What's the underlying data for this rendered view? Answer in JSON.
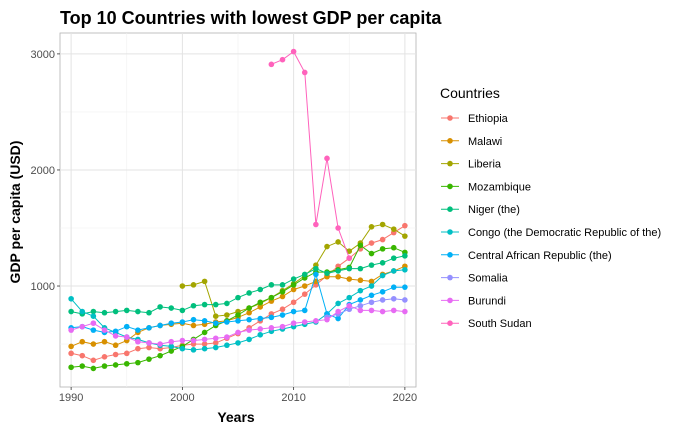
{
  "chart_data": {
    "type": "line",
    "title": "Top 10 Countries with lowest GDP per capita",
    "xlabel": "Years",
    "ylabel": "GDP per capita (USD)",
    "xlim": [
      1989,
      2021
    ],
    "ylim": [
      130,
      3180
    ],
    "xticks": [
      1990,
      2000,
      2010,
      2020
    ],
    "yticks": [
      1000,
      2000,
      3000
    ],
    "grid": true,
    "legend_title": "Countries",
    "legend_position": "right",
    "series": [
      {
        "name": "Ethiopia",
        "color": "#F8766D",
        "x": [
          1990,
          1991,
          1992,
          1993,
          1994,
          1995,
          1996,
          1997,
          1998,
          1999,
          2000,
          2001,
          2002,
          2003,
          2004,
          2005,
          2006,
          2007,
          2008,
          2009,
          2010,
          2011,
          2012,
          2013,
          2014,
          2015,
          2016,
          2017,
          2018,
          2019,
          2020
        ],
        "y": [
          420,
          400,
          360,
          390,
          410,
          420,
          460,
          470,
          460,
          470,
          490,
          500,
          500,
          510,
          550,
          590,
          640,
          700,
          760,
          800,
          860,
          930,
          1010,
          1090,
          1170,
          1240,
          1320,
          1370,
          1400,
          1460,
          1520
        ]
      },
      {
        "name": "Malawi",
        "color": "#D89000",
        "x": [
          1990,
          1991,
          1992,
          1993,
          1994,
          1995,
          1996,
          1997,
          1998,
          1999,
          2000,
          2001,
          2002,
          2003,
          2004,
          2005,
          2006,
          2007,
          2008,
          2009,
          2010,
          2011,
          2012,
          2013,
          2014,
          2015,
          2016,
          2017,
          2018,
          2019,
          2020
        ],
        "y": [
          480,
          520,
          500,
          520,
          490,
          530,
          600,
          640,
          660,
          670,
          680,
          660,
          670,
          690,
          700,
          730,
          770,
          820,
          870,
          910,
          970,
          1000,
          1040,
          1080,
          1080,
          1060,
          1050,
          1040,
          1100,
          1130,
          1170
        ]
      },
      {
        "name": "Liberia",
        "color": "#A3A500",
        "x": [
          2000,
          2001,
          2002,
          2003,
          2004,
          2005,
          2006,
          2007,
          2008,
          2009,
          2010,
          2011,
          2012,
          2013,
          2014,
          2015,
          2016,
          2017,
          2018,
          2019,
          2020
        ],
        "y": [
          1000,
          1010,
          1040,
          740,
          750,
          780,
          810,
          850,
          900,
          960,
          1020,
          1090,
          1180,
          1340,
          1380,
          1300,
          1370,
          1510,
          1530,
          1490,
          1430
        ]
      },
      {
        "name": "Mozambique",
        "color": "#39B600",
        "x": [
          1990,
          1991,
          1992,
          1993,
          1994,
          1995,
          1996,
          1997,
          1998,
          1999,
          2000,
          2001,
          2002,
          2003,
          2004,
          2005,
          2006,
          2007,
          2008,
          2009,
          2010,
          2011,
          2012,
          2013,
          2014,
          2015,
          2016,
          2017,
          2018,
          2019,
          2020
        ],
        "y": [
          300,
          310,
          290,
          310,
          320,
          330,
          340,
          370,
          400,
          440,
          480,
          540,
          600,
          660,
          700,
          750,
          810,
          860,
          900,
          950,
          1010,
          1070,
          1120,
          1120,
          1140,
          1160,
          1350,
          1280,
          1320,
          1330,
          1290
        ]
      },
      {
        "name": "Niger (the)",
        "color": "#00BF7D",
        "x": [
          1990,
          1991,
          1992,
          1993,
          1994,
          1995,
          1996,
          1997,
          1998,
          1999,
          2000,
          2001,
          2002,
          2003,
          2004,
          2005,
          2006,
          2007,
          2008,
          2009,
          2010,
          2011,
          2012,
          2013,
          2014,
          2015,
          2016,
          2017,
          2018,
          2019,
          2020
        ],
        "y": [
          780,
          760,
          780,
          770,
          780,
          790,
          780,
          770,
          820,
          810,
          790,
          830,
          840,
          840,
          850,
          900,
          940,
          970,
          1010,
          1010,
          1060,
          1100,
          1150,
          1110,
          1130,
          1150,
          1150,
          1180,
          1200,
          1240,
          1260
        ]
      },
      {
        "name": "Congo (the Democratic Republic of the)",
        "color": "#00BFC4",
        "x": [
          1990,
          1991,
          1992,
          1993,
          1994,
          1995,
          1996,
          1997,
          1998,
          1999,
          2000,
          2001,
          2002,
          2003,
          2004,
          2005,
          2006,
          2007,
          2008,
          2009,
          2010,
          2011,
          2012,
          2013,
          2014,
          2015,
          2016,
          2017,
          2018,
          2019,
          2020
        ],
        "y": [
          890,
          780,
          740,
          640,
          600,
          560,
          540,
          510,
          490,
          480,
          460,
          450,
          460,
          470,
          490,
          510,
          540,
          580,
          610,
          630,
          650,
          670,
          690,
          760,
          850,
          900,
          960,
          1000,
          1090,
          1130,
          1140
        ]
      },
      {
        "name": "Central African Republic (the)",
        "color": "#00B0F6",
        "x": [
          1990,
          1991,
          1992,
          1993,
          1994,
          1995,
          1996,
          1997,
          1998,
          1999,
          2000,
          2001,
          2002,
          2003,
          2004,
          2005,
          2006,
          2007,
          2008,
          2009,
          2010,
          2011,
          2012,
          2013,
          2014,
          2015,
          2016,
          2017,
          2018,
          2019,
          2020
        ],
        "y": [
          640,
          650,
          620,
          600,
          610,
          650,
          620,
          640,
          660,
          680,
          690,
          710,
          700,
          680,
          690,
          700,
          710,
          720,
          730,
          750,
          780,
          790,
          1100,
          760,
          720,
          840,
          880,
          920,
          950,
          990,
          990
        ]
      },
      {
        "name": "Somalia",
        "color": "#9590FF",
        "x": [
          2013,
          2014,
          2015,
          2016,
          2017,
          2018,
          2019,
          2020
        ],
        "y": [
          730,
          760,
          800,
          830,
          860,
          880,
          890,
          880
        ]
      },
      {
        "name": "Burundi",
        "color": "#E76BF3",
        "x": [
          1990,
          1991,
          1992,
          1993,
          1994,
          1995,
          1996,
          1997,
          1998,
          1999,
          2000,
          2001,
          2002,
          2003,
          2004,
          2005,
          2006,
          2007,
          2008,
          2009,
          2010,
          2011,
          2012,
          2013,
          2014,
          2015,
          2016,
          2017,
          2018,
          2019,
          2020
        ],
        "y": [
          620,
          650,
          680,
          620,
          570,
          560,
          520,
          510,
          500,
          520,
          530,
          530,
          540,
          550,
          560,
          600,
          620,
          630,
          640,
          650,
          680,
          690,
          700,
          710,
          780,
          830,
          790,
          790,
          780,
          790,
          780
        ]
      },
      {
        "name": "South Sudan",
        "color": "#FF62BC",
        "x": [
          2008,
          2009,
          2010,
          2011,
          2012,
          2013,
          2014,
          2015
        ],
        "y": [
          2910,
          2950,
          3020,
          2840,
          1530,
          2100,
          1500,
          1240
        ]
      }
    ]
  }
}
